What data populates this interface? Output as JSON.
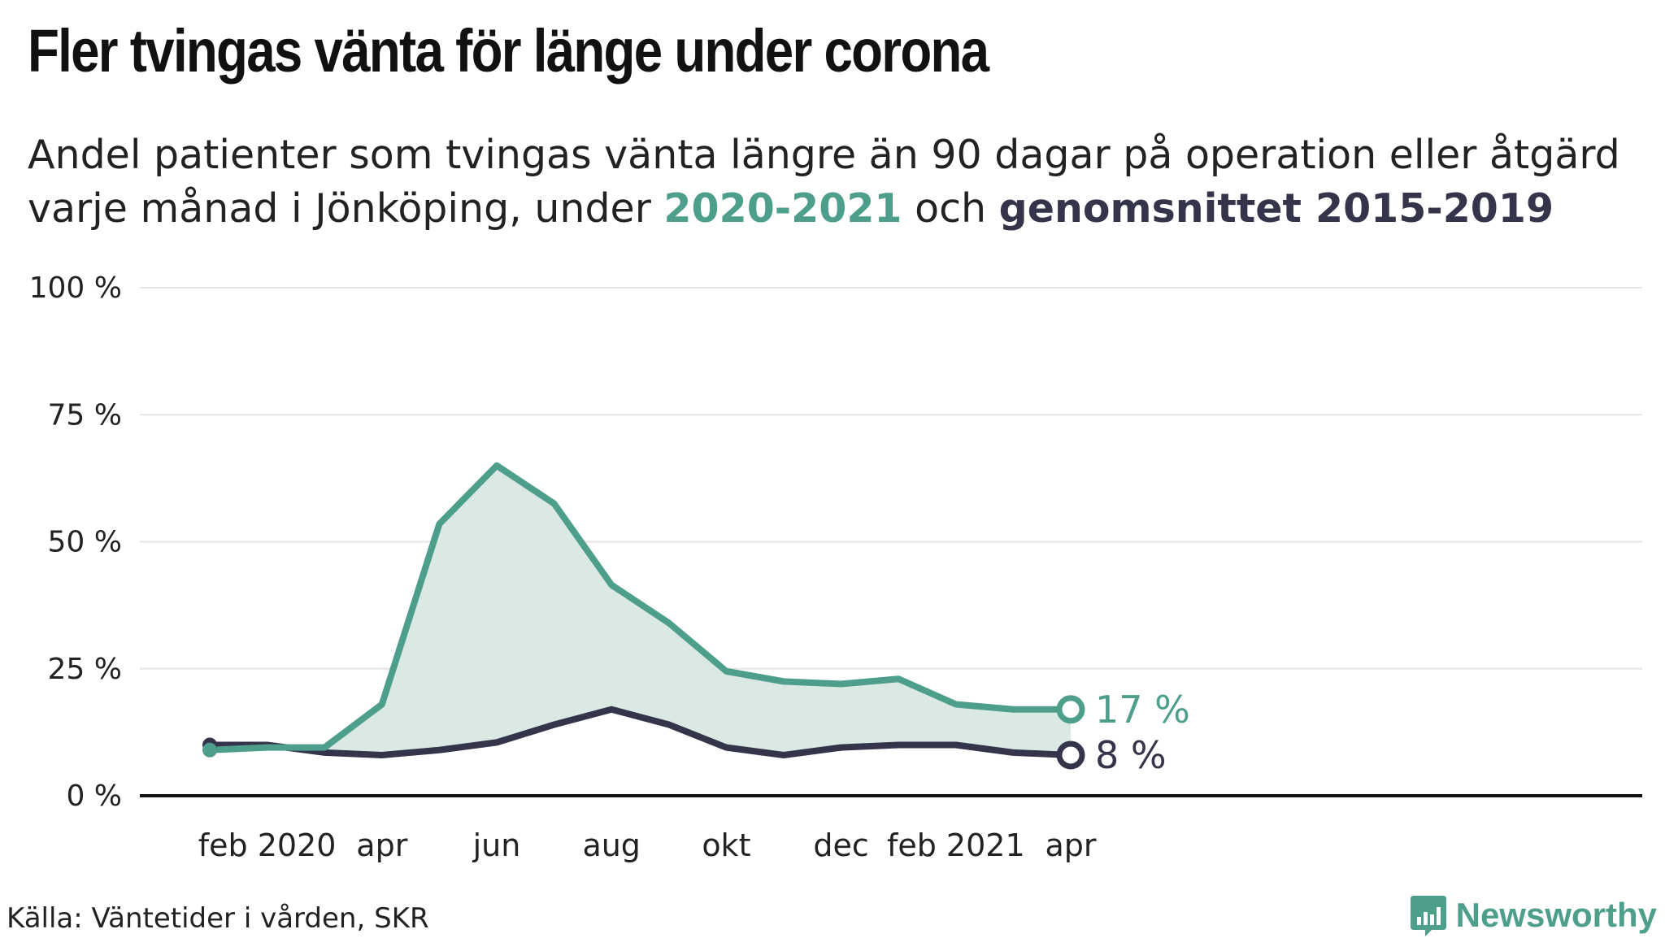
{
  "header": {
    "title": "Fler tvingas vänta för länge under corona",
    "subtitle_line1": "Andel patienter som tvingas vänta längre än 90 dagar på operation eller åtgärd",
    "subtitle_line2_pre": "varje månad i Jönköping, under ",
    "subtitle_series1": "2020-2021",
    "subtitle_mid": " och ",
    "subtitle_series2": "genomsnittet 2015-2019"
  },
  "footer": {
    "source": "Källa: Väntetider i vården, SKR",
    "brand": "Newsworthy"
  },
  "colors": {
    "series_2020": "#4e9e8c",
    "series_avg": "#34344a",
    "fill": "#dbe9e5",
    "grid": "#e6e6e6",
    "axis": "#111111"
  },
  "chart_data": {
    "type": "line",
    "x": [
      "jan 2020",
      "feb 2020",
      "mar 2020",
      "apr 2020",
      "maj 2020",
      "jun 2020",
      "jul 2020",
      "aug 2020",
      "sep 2020",
      "okt 2020",
      "nov 2020",
      "dec 2020",
      "jan 2021",
      "feb 2021",
      "mar 2021",
      "apr 2021"
    ],
    "x_tick_labels": [
      {
        "index": 1,
        "label": "feb 2020"
      },
      {
        "index": 3,
        "label": "apr"
      },
      {
        "index": 5,
        "label": "jun"
      },
      {
        "index": 7,
        "label": "aug"
      },
      {
        "index": 9,
        "label": "okt"
      },
      {
        "index": 11,
        "label": "dec"
      },
      {
        "index": 13,
        "label": "feb 2021"
      },
      {
        "index": 15,
        "label": "apr"
      }
    ],
    "y_ticks": [
      0,
      25,
      50,
      75,
      100
    ],
    "y_tick_labels": [
      "0 %",
      "25 %",
      "50 %",
      "75 %",
      "100 %"
    ],
    "ylim": [
      0,
      100
    ],
    "grid": true,
    "area_between_series": true,
    "series": [
      {
        "key": "series_2020",
        "values": [
          9,
          9.5,
          9.5,
          18,
          53.5,
          65,
          57.5,
          41.5,
          34,
          24.5,
          22.5,
          22,
          23,
          18,
          17,
          17
        ],
        "end_label": "17 %"
      },
      {
        "key": "series_avg",
        "values": [
          10,
          10,
          8.5,
          8,
          9,
          10.5,
          14,
          17,
          14,
          9.5,
          8,
          9.5,
          10,
          10,
          8.5,
          8
        ],
        "end_label": "8 %"
      }
    ]
  }
}
